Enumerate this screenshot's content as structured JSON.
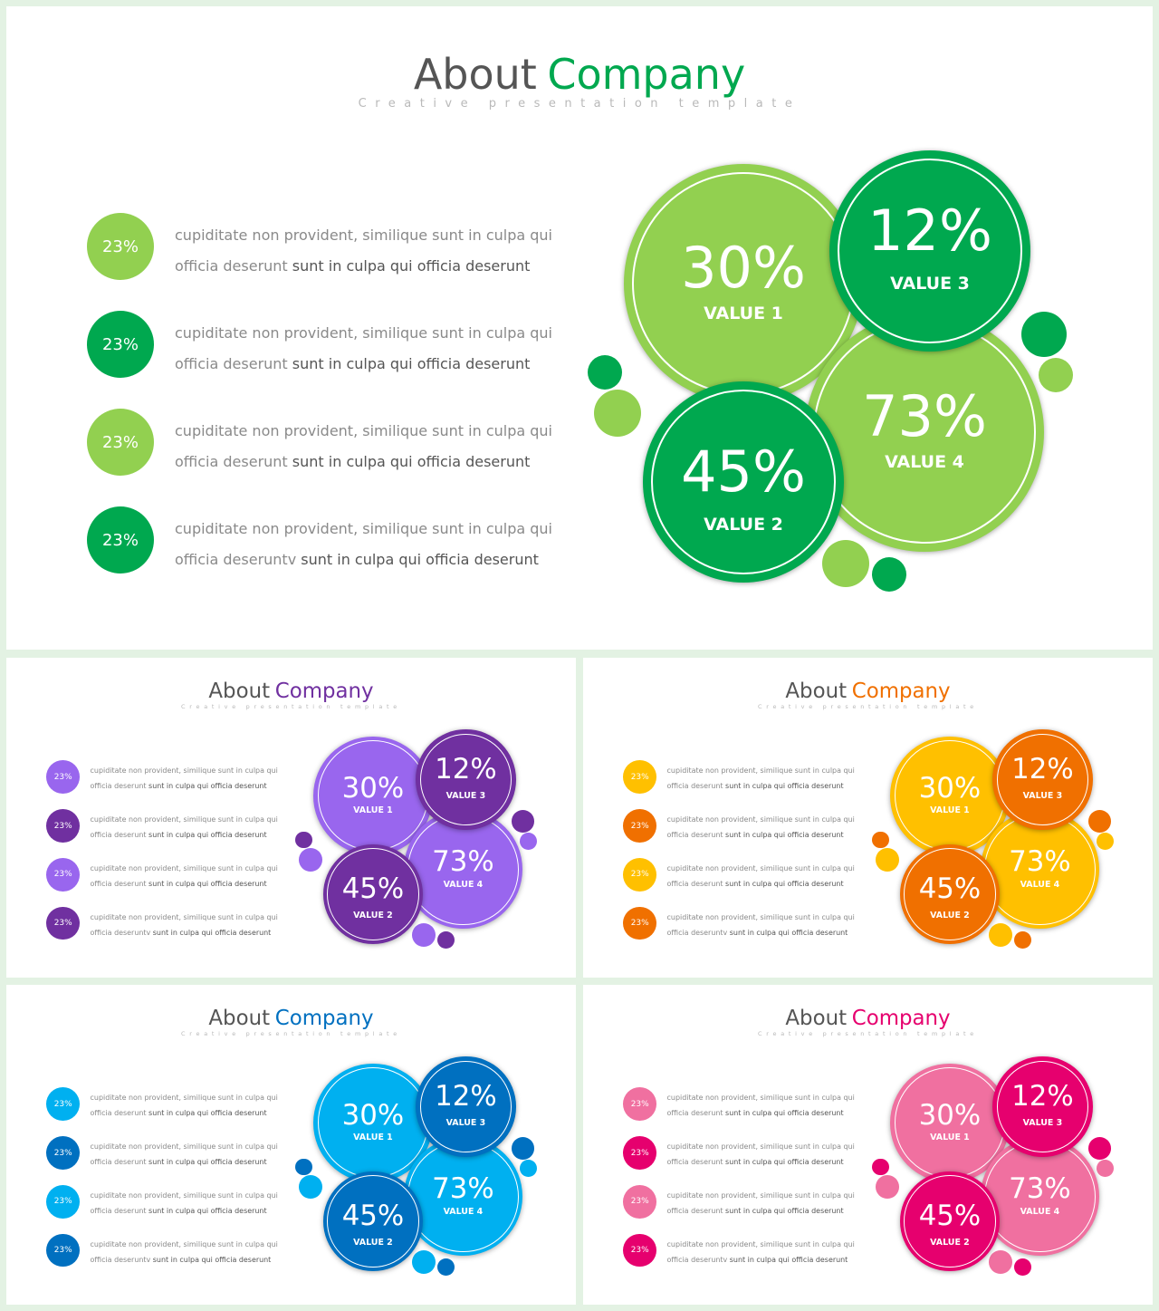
{
  "slides": [
    {
      "title_part1": "About",
      "title_part2": "Company",
      "subtitle": "Creative presentation template",
      "colors": {
        "accent": "#00a84f",
        "light": "#92d050",
        "dark": "#00a84f"
      },
      "rows": [
        {
          "value": "23%",
          "line1": "cupiditate non provident, similique sunt in culpa qui",
          "line2_plain": "officia deserunt ",
          "line2_bold": "sunt in culpa qui officia deserunt",
          "tone": "light"
        },
        {
          "value": "23%",
          "line1": "cupiditate non provident, similique sunt in culpa qui",
          "line2_plain": "officia deserunt ",
          "line2_bold": "sunt in culpa qui officia deserunt",
          "tone": "dark"
        },
        {
          "value": "23%",
          "line1": "cupiditate non provident, similique sunt in culpa qui",
          "line2_plain": "officia deserunt ",
          "line2_bold": "sunt in culpa qui officia deserunt",
          "tone": "light"
        },
        {
          "value": "23%",
          "line1": "cupiditate non provident, similique sunt in culpa qui",
          "line2_plain": "officia deseruntv ",
          "line2_bold": "sunt in culpa qui officia deserunt",
          "tone": "dark"
        }
      ],
      "circles": [
        {
          "value": "30%",
          "label": "VALUE 1",
          "tone": "light"
        },
        {
          "value": "73%",
          "label": "VALUE 4",
          "tone": "light"
        },
        {
          "value": "12%",
          "label": "VALUE 3",
          "tone": "dark"
        },
        {
          "value": "45%",
          "label": "VALUE 2",
          "tone": "dark"
        }
      ]
    },
    {
      "title_part1": "About",
      "title_part2": "Company",
      "subtitle": "Creative presentation template",
      "colors": {
        "accent": "#7030a0",
        "light": "#9966ee",
        "dark": "#7030a0"
      },
      "rows": [
        {
          "value": "23%",
          "line1": "cupiditate non provident, similique sunt in culpa qui",
          "line2_plain": "officia deserunt ",
          "line2_bold": "sunt in culpa qui officia deserunt",
          "tone": "light"
        },
        {
          "value": "23%",
          "line1": "cupiditate non provident, similique sunt in culpa qui",
          "line2_plain": "officia deserunt ",
          "line2_bold": "sunt in culpa qui officia deserunt",
          "tone": "dark"
        },
        {
          "value": "23%",
          "line1": "cupiditate non provident, similique sunt in culpa qui",
          "line2_plain": "officia deserunt ",
          "line2_bold": "sunt in culpa qui officia deserunt",
          "tone": "light"
        },
        {
          "value": "23%",
          "line1": "cupiditate non provident, similique sunt in culpa qui",
          "line2_plain": "officia deseruntv ",
          "line2_bold": "sunt in culpa qui officia deserunt",
          "tone": "dark"
        }
      ],
      "circles": [
        {
          "value": "30%",
          "label": "VALUE 1",
          "tone": "light"
        },
        {
          "value": "73%",
          "label": "VALUE 4",
          "tone": "light"
        },
        {
          "value": "12%",
          "label": "VALUE 3",
          "tone": "dark"
        },
        {
          "value": "45%",
          "label": "VALUE 2",
          "tone": "dark"
        }
      ]
    },
    {
      "title_part1": "About",
      "title_part2": "Company",
      "subtitle": "Creative presentation template",
      "colors": {
        "accent": "#f07000",
        "light": "#ffc000",
        "dark": "#f07000"
      },
      "rows": [
        {
          "value": "23%",
          "line1": "cupiditate non provident, similique sunt in culpa qui",
          "line2_plain": "officia deserunt ",
          "line2_bold": "sunt in culpa qui officia deserunt",
          "tone": "light"
        },
        {
          "value": "23%",
          "line1": "cupiditate non provident, similique sunt in culpa qui",
          "line2_plain": "officia deserunt ",
          "line2_bold": "sunt in culpa qui officia deserunt",
          "tone": "dark"
        },
        {
          "value": "23%",
          "line1": "cupiditate non provident, similique sunt in culpa qui",
          "line2_plain": "officia deserunt ",
          "line2_bold": "sunt in culpa qui officia deserunt",
          "tone": "light"
        },
        {
          "value": "23%",
          "line1": "cupiditate non provident, similique sunt in culpa qui",
          "line2_plain": "officia deseruntv ",
          "line2_bold": "sunt in culpa qui officia deserunt",
          "tone": "dark"
        }
      ],
      "circles": [
        {
          "value": "30%",
          "label": "VALUE 1",
          "tone": "light"
        },
        {
          "value": "73%",
          "label": "VALUE 4",
          "tone": "light"
        },
        {
          "value": "12%",
          "label": "VALUE 3",
          "tone": "dark"
        },
        {
          "value": "45%",
          "label": "VALUE 2",
          "tone": "dark"
        }
      ]
    },
    {
      "title_part1": "About",
      "title_part2": "Company",
      "subtitle": "Creative presentation template",
      "colors": {
        "accent": "#0070c0",
        "light": "#00b0f0",
        "dark": "#0070c0"
      },
      "rows": [
        {
          "value": "23%",
          "line1": "cupiditate non provident, similique sunt in culpa qui",
          "line2_plain": "officia deserunt ",
          "line2_bold": "sunt in culpa qui officia deserunt",
          "tone": "light"
        },
        {
          "value": "23%",
          "line1": "cupiditate non provident, similique sunt in culpa qui",
          "line2_plain": "officia deserunt ",
          "line2_bold": "sunt in culpa qui officia deserunt",
          "tone": "dark"
        },
        {
          "value": "23%",
          "line1": "cupiditate non provident, similique sunt in culpa qui",
          "line2_plain": "officia deserunt ",
          "line2_bold": "sunt in culpa qui officia deserunt",
          "tone": "light"
        },
        {
          "value": "23%",
          "line1": "cupiditate non provident, similique sunt in culpa qui",
          "line2_plain": "officia deseruntv ",
          "line2_bold": "sunt in culpa qui officia deserunt",
          "tone": "dark"
        }
      ],
      "circles": [
        {
          "value": "30%",
          "label": "VALUE 1",
          "tone": "light"
        },
        {
          "value": "73%",
          "label": "VALUE 4",
          "tone": "light"
        },
        {
          "value": "12%",
          "label": "VALUE 3",
          "tone": "dark"
        },
        {
          "value": "45%",
          "label": "VALUE 2",
          "tone": "dark"
        }
      ]
    },
    {
      "title_part1": "About",
      "title_part2": "Company",
      "subtitle": "Creative presentation template",
      "colors": {
        "accent": "#e6006e",
        "light": "#f070a0",
        "dark": "#e6006e"
      },
      "rows": [
        {
          "value": "23%",
          "line1": "cupiditate non provident, similique sunt in culpa qui",
          "line2_plain": "officia deserunt ",
          "line2_bold": "sunt in culpa qui officia deserunt",
          "tone": "light"
        },
        {
          "value": "23%",
          "line1": "cupiditate non provident, similique sunt in culpa qui",
          "line2_plain": "officia deserunt ",
          "line2_bold": "sunt in culpa qui officia deserunt",
          "tone": "dark"
        },
        {
          "value": "23%",
          "line1": "cupiditate non provident, similique sunt in culpa qui",
          "line2_plain": "officia deserunt ",
          "line2_bold": "sunt in culpa qui officia deserunt",
          "tone": "light"
        },
        {
          "value": "23%",
          "line1": "cupiditate non provident, similique sunt in culpa qui",
          "line2_plain": "officia deseruntv ",
          "line2_bold": "sunt in culpa qui officia deserunt",
          "tone": "dark"
        }
      ],
      "circles": [
        {
          "value": "30%",
          "label": "VALUE 1",
          "tone": "light"
        },
        {
          "value": "73%",
          "label": "VALUE 4",
          "tone": "light"
        },
        {
          "value": "12%",
          "label": "VALUE 3",
          "tone": "dark"
        },
        {
          "value": "45%",
          "label": "VALUE 2",
          "tone": "dark"
        }
      ]
    }
  ]
}
